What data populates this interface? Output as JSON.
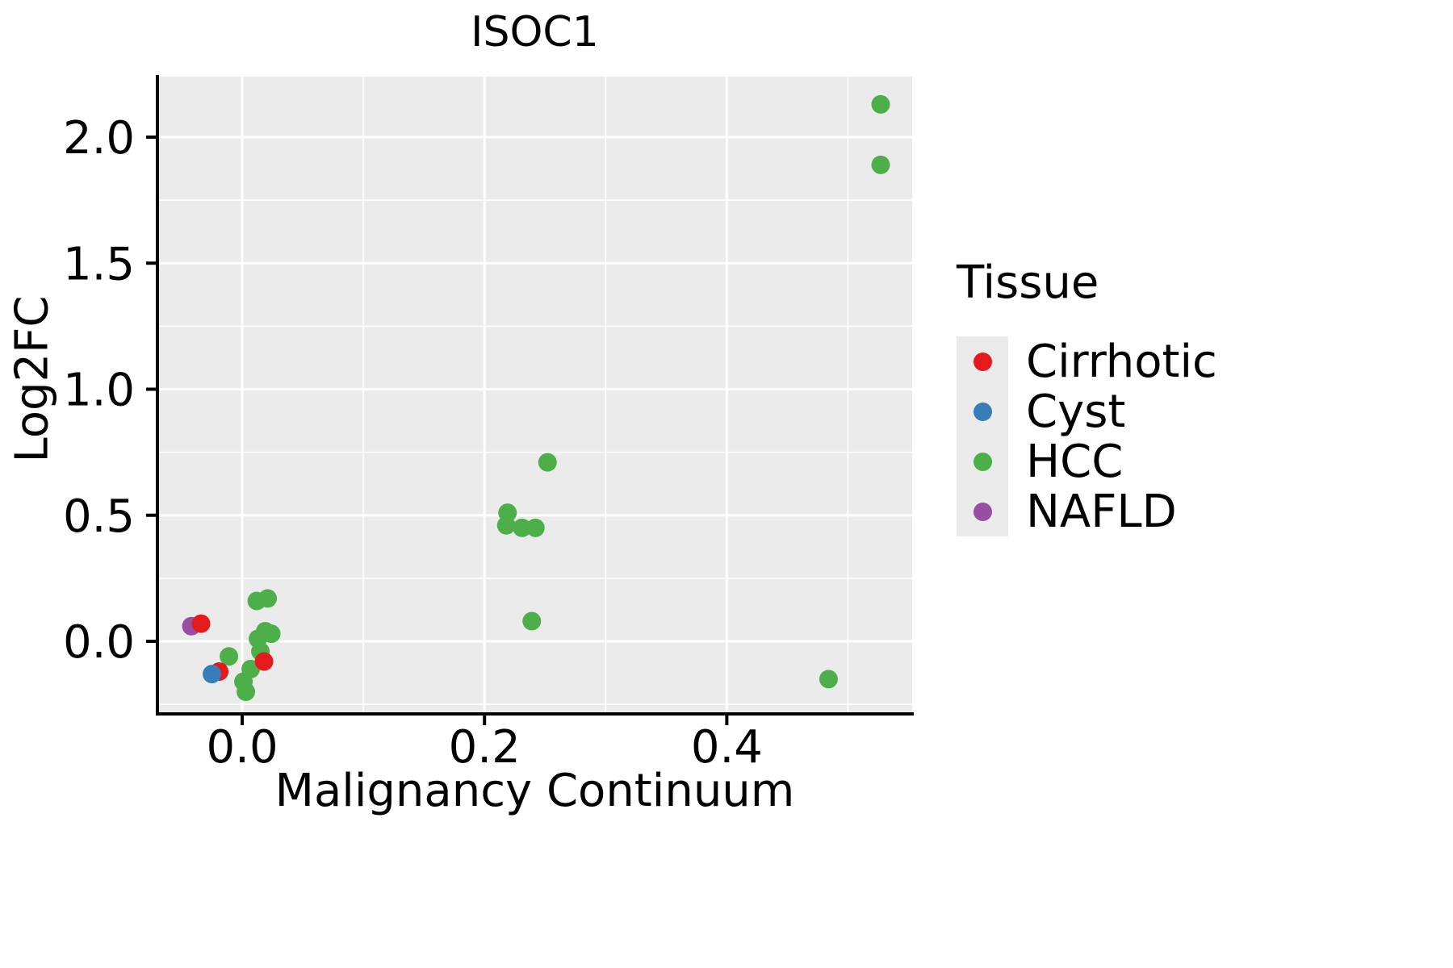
{
  "chart_data": {
    "type": "scatter",
    "title": "ISOC1",
    "xlabel": "Malignancy Continuum",
    "ylabel": "Log2FC",
    "xlim": [
      -0.07,
      0.553
    ],
    "ylim": [
      -0.288,
      2.24
    ],
    "x_ticks": [
      {
        "v": 0.0,
        "label": "0.0"
      },
      {
        "v": 0.2,
        "label": "0.2"
      },
      {
        "v": 0.4,
        "label": "0.4"
      }
    ],
    "y_ticks": [
      {
        "v": 0.0,
        "label": "0.0"
      },
      {
        "v": 0.5,
        "label": "0.5"
      },
      {
        "v": 1.0,
        "label": "1.0"
      },
      {
        "v": 1.5,
        "label": "1.5"
      },
      {
        "v": 2.0,
        "label": "2.0"
      }
    ],
    "x_minor_ticks": [
      0.1,
      0.3,
      0.5
    ],
    "y_minor_ticks": [
      -0.25,
      0.25,
      0.75,
      1.25,
      1.75
    ],
    "grid": true,
    "panel_background": "#EBEBEB",
    "grid_color": "#FFFFFF",
    "axis_color": "#000000",
    "legend": {
      "title": "Tissue",
      "position": "right"
    },
    "z_order": [
      "HCC",
      "NAFLD",
      "Cirrhotic",
      "Cyst"
    ],
    "series": [
      {
        "name": "Cirrhotic",
        "color": "#E41A1C",
        "points": [
          [
            -0.034,
            0.07
          ],
          [
            -0.019,
            -0.12
          ],
          [
            0.018,
            -0.08
          ]
        ]
      },
      {
        "name": "Cyst",
        "color": "#377EB8",
        "points": [
          [
            -0.025,
            -0.13
          ]
        ]
      },
      {
        "name": "HCC",
        "color": "#4DAF4A",
        "points": [
          [
            0.527,
            2.13
          ],
          [
            0.527,
            1.89
          ],
          [
            0.252,
            0.71
          ],
          [
            0.219,
            0.51
          ],
          [
            0.218,
            0.46
          ],
          [
            0.231,
            0.45
          ],
          [
            0.242,
            0.45
          ],
          [
            0.239,
            0.08
          ],
          [
            0.484,
            -0.15
          ],
          [
            0.012,
            0.16
          ],
          [
            0.021,
            0.17
          ],
          [
            0.013,
            0.01
          ],
          [
            0.019,
            0.04
          ],
          [
            0.024,
            0.03
          ],
          [
            0.015,
            -0.04
          ],
          [
            -0.011,
            -0.06
          ],
          [
            0.001,
            -0.16
          ],
          [
            0.003,
            -0.2
          ],
          [
            0.007,
            -0.11
          ]
        ]
      },
      {
        "name": "NAFLD",
        "color": "#984EA3",
        "points": [
          [
            -0.042,
            0.06
          ]
        ]
      }
    ]
  }
}
